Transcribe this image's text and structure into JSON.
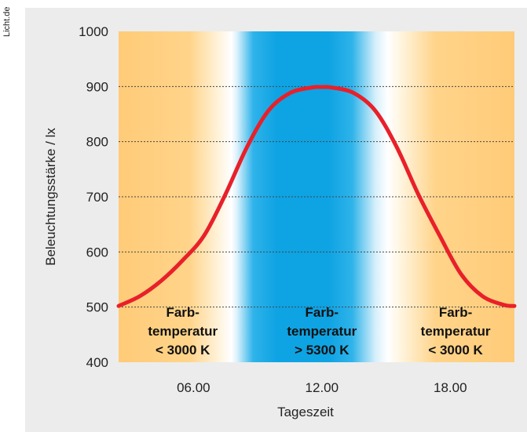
{
  "source_label": "Licht.de",
  "chart_data": {
    "type": "line",
    "title": "",
    "xlabel": "Tageszeit",
    "ylabel": "Beleuchtungsstärke / lx",
    "ylim": [
      400,
      1000
    ],
    "xlim": [
      2.5,
      21
    ],
    "yticks": [
      400,
      500,
      600,
      700,
      800,
      900,
      1000
    ],
    "xticks": [
      {
        "value": 6,
        "label": "06.00"
      },
      {
        "value": 12,
        "label": "12.00"
      },
      {
        "value": 18,
        "label": "18.00"
      }
    ],
    "grid": "horizontal dashed",
    "series": [
      {
        "color": "#e8202a",
        "x": [
          2.5,
          3.5,
          4.5,
          5.5,
          6.5,
          7.5,
          8.5,
          9.5,
          10.5,
          11.5,
          12.0,
          12.5,
          13.5,
          14.5,
          15.5,
          16.5,
          17.5,
          18.5,
          19.5,
          20.5,
          21.0
        ],
        "y": [
          502,
          520,
          548,
          585,
          630,
          705,
          790,
          856,
          888,
          898,
          899,
          898,
          888,
          856,
          790,
          705,
          630,
          560,
          520,
          504,
          502
        ]
      }
    ],
    "zones": [
      {
        "from": 2.5,
        "to": 8.5,
        "color": "#ffd07e",
        "lines": [
          "Farb-",
          "temperatur",
          "< 3000 K"
        ]
      },
      {
        "from": 8.5,
        "to": 15.5,
        "color": "#16a8e6",
        "lines": [
          "Farb-",
          "temperatur",
          "> 5300 K"
        ]
      },
      {
        "from": 15.5,
        "to": 21.0,
        "color": "#ffd07e",
        "lines": [
          "Farb-",
          "temperatur",
          "< 3000 K"
        ]
      }
    ]
  }
}
